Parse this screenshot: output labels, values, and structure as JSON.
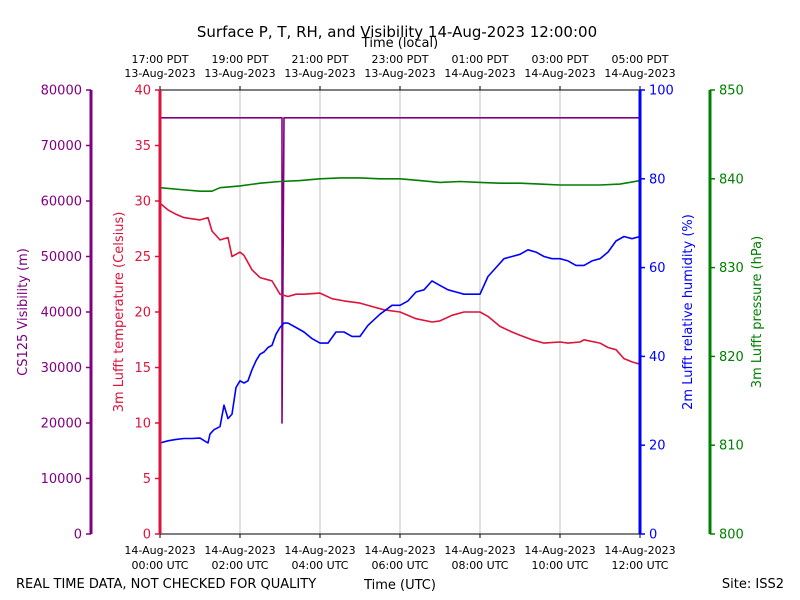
{
  "chart_data": {
    "type": "line",
    "title": "Surface P, T, RH, and Visibility 14-Aug-2023 12:00:00",
    "top_axis_title": "Time (local)",
    "xlabel": "Time (UTC)",
    "footer_left": "REAL TIME DATA, NOT CHECKED FOR QUALITY",
    "footer_right": "Site: ISS2",
    "xlim_hours_utc": [
      0,
      12
    ],
    "grid": "vertical lines at bottom x ticks",
    "x_ticks_utc": [
      {
        "h": 0,
        "date": "14-Aug-2023",
        "time": "00:00 UTC"
      },
      {
        "h": 2,
        "date": "14-Aug-2023",
        "time": "02:00 UTC"
      },
      {
        "h": 4,
        "date": "14-Aug-2023",
        "time": "04:00 UTC"
      },
      {
        "h": 6,
        "date": "14-Aug-2023",
        "time": "06:00 UTC"
      },
      {
        "h": 8,
        "date": "14-Aug-2023",
        "time": "08:00 UTC"
      },
      {
        "h": 10,
        "date": "14-Aug-2023",
        "time": "10:00 UTC"
      },
      {
        "h": 12,
        "date": "14-Aug-2023",
        "time": "12:00 UTC"
      }
    ],
    "x_ticks_local": [
      {
        "h": 0,
        "time": "17:00 PDT",
        "date": "13-Aug-2023"
      },
      {
        "h": 2,
        "time": "19:00 PDT",
        "date": "13-Aug-2023"
      },
      {
        "h": 4,
        "time": "21:00 PDT",
        "date": "13-Aug-2023"
      },
      {
        "h": 6,
        "time": "23:00 PDT",
        "date": "13-Aug-2023"
      },
      {
        "h": 8,
        "time": "01:00 PDT",
        "date": "14-Aug-2023"
      },
      {
        "h": 10,
        "time": "03:00 PDT",
        "date": "14-Aug-2023"
      },
      {
        "h": 12,
        "time": "05:00 PDT",
        "date": "14-Aug-2023"
      }
    ],
    "axes": {
      "visibility": {
        "label": "CS125 Visibility (m)",
        "color": "#800080",
        "ylim": [
          0,
          80000
        ],
        "ticks": [
          0,
          10000,
          20000,
          30000,
          40000,
          50000,
          60000,
          70000,
          80000
        ]
      },
      "temperature": {
        "label": "3m Lufft temperature (Celsius)",
        "color": "#dc143c",
        "ylim": [
          0,
          40
        ],
        "ticks": [
          0,
          5,
          10,
          15,
          20,
          25,
          30,
          35,
          40
        ]
      },
      "humidity": {
        "label": "2m Lufft relative humidity (%)",
        "color": "#0000ff",
        "ylim": [
          0,
          100
        ],
        "ticks": [
          0,
          20,
          40,
          60,
          80,
          100
        ]
      },
      "pressure": {
        "label": "3m Lufft pressure (hPa)",
        "color": "#008000",
        "ylim": [
          800,
          850
        ],
        "ticks": [
          800,
          810,
          820,
          830,
          840,
          850
        ]
      }
    },
    "series": [
      {
        "axis": "visibility",
        "color": "#800080",
        "x": [
          0,
          3.05,
          3.05,
          3.1,
          3.1,
          12
        ],
        "y": [
          75000,
          75000,
          20000,
          75000,
          75000,
          75000
        ]
      },
      {
        "axis": "temperature",
        "color": "#dc143c",
        "x": [
          0,
          0.2,
          0.4,
          0.6,
          0.8,
          1.0,
          1.2,
          1.3,
          1.5,
          1.7,
          1.8,
          2.0,
          2.1,
          2.3,
          2.5,
          2.7,
          2.8,
          3.0,
          3.2,
          3.4,
          3.6,
          4.0,
          4.3,
          4.6,
          5.0,
          5.3,
          5.6,
          6.0,
          6.4,
          6.8,
          7.0,
          7.3,
          7.6,
          8.0,
          8.2,
          8.5,
          8.8,
          9.0,
          9.3,
          9.6,
          10.0,
          10.2,
          10.5,
          10.6,
          11.0,
          11.2,
          11.4,
          11.6,
          11.8,
          12.0
        ],
        "y": [
          29.8,
          29.2,
          28.8,
          28.5,
          28.4,
          28.3,
          28.5,
          27.3,
          26.5,
          26.7,
          25.0,
          25.4,
          25.1,
          23.8,
          23.1,
          22.9,
          22.8,
          21.6,
          21.4,
          21.6,
          21.6,
          21.7,
          21.2,
          21.0,
          20.8,
          20.5,
          20.2,
          20.0,
          19.4,
          19.1,
          19.2,
          19.7,
          20.0,
          20.0,
          19.6,
          18.7,
          18.2,
          17.9,
          17.5,
          17.2,
          17.3,
          17.2,
          17.3,
          17.5,
          17.2,
          16.8,
          16.6,
          15.8,
          15.5,
          15.3
        ]
      },
      {
        "axis": "humidity",
        "color": "#0000ff",
        "x": [
          0,
          0.2,
          0.4,
          0.6,
          0.8,
          1.0,
          1.2,
          1.25,
          1.35,
          1.5,
          1.6,
          1.7,
          1.8,
          1.9,
          2.0,
          2.1,
          2.2,
          2.3,
          2.4,
          2.5,
          2.6,
          2.7,
          2.8,
          2.9,
          3.0,
          3.1,
          3.2,
          3.4,
          3.6,
          3.8,
          4.0,
          4.2,
          4.4,
          4.6,
          4.8,
          5.0,
          5.2,
          5.5,
          5.8,
          6.0,
          6.2,
          6.4,
          6.6,
          6.8,
          7.0,
          7.2,
          7.4,
          7.6,
          7.8,
          8.0,
          8.2,
          8.4,
          8.6,
          8.8,
          9.0,
          9.2,
          9.4,
          9.6,
          9.8,
          10.0,
          10.2,
          10.4,
          10.6,
          10.8,
          11.0,
          11.2,
          11.4,
          11.6,
          11.8,
          12.0
        ],
        "y": [
          20.5,
          21.0,
          21.3,
          21.5,
          21.5,
          21.6,
          20.5,
          22.5,
          23.5,
          24.2,
          29.0,
          26.0,
          27.0,
          33.0,
          34.5,
          34.0,
          34.5,
          37.0,
          39.0,
          40.5,
          41.0,
          42.0,
          42.5,
          45.0,
          46.5,
          47.5,
          47.5,
          46.5,
          45.5,
          44.0,
          43.0,
          43.0,
          45.5,
          45.5,
          44.5,
          44.5,
          47.0,
          49.5,
          51.5,
          51.5,
          52.5,
          54.5,
          55.0,
          57.0,
          56.0,
          55.0,
          54.5,
          54.0,
          54.0,
          54.0,
          58.0,
          60.0,
          62.0,
          62.5,
          63.0,
          64.0,
          63.5,
          62.5,
          62.0,
          62.0,
          61.5,
          60.5,
          60.5,
          61.5,
          62.0,
          63.5,
          66.0,
          67.0,
          66.5,
          67.0
        ]
      },
      {
        "axis": "pressure",
        "color": "#008000",
        "x": [
          0,
          0.5,
          1.0,
          1.3,
          1.5,
          2.0,
          2.5,
          3.0,
          3.5,
          4.0,
          4.5,
          5.0,
          5.5,
          6.0,
          6.5,
          7.0,
          7.5,
          8.0,
          8.5,
          9.0,
          9.5,
          10.0,
          10.5,
          11.0,
          11.5,
          12.0
        ],
        "y": [
          839.0,
          838.8,
          838.6,
          838.6,
          839.0,
          839.2,
          839.5,
          839.7,
          839.8,
          840.0,
          840.1,
          840.1,
          840.0,
          840.0,
          839.8,
          839.6,
          839.7,
          839.6,
          839.5,
          839.5,
          839.4,
          839.3,
          839.3,
          839.3,
          839.4,
          839.8
        ]
      }
    ]
  }
}
